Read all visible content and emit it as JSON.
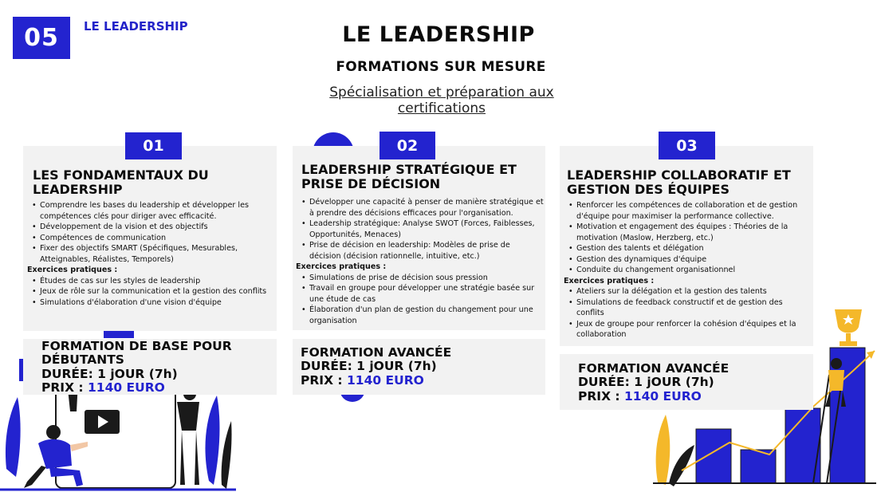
{
  "header": {
    "section_number": "05",
    "section_label": "LE LEADERSHIP",
    "title": "LE LEADERSHIP",
    "subtitle": "FORMATIONS SUR MESURE",
    "specialisation": "Spécialisation et préparation aux certifications"
  },
  "cards": [
    {
      "number": "01",
      "title": "LES FONDAMENTAUX DU LEADERSHIP",
      "bullets": [
        "Comprendre les bases du leadership et développer les compétences clés pour diriger avec efficacité.",
        "Développement de la vision et des objectifs",
        "Compétences de communication",
        "Fixer des objectifs SMART (Spécifiques, Mesurables, Atteignables, Réalistes, Temporels)"
      ],
      "exercises_label": "Exercices pratiques :",
      "exercises": [
        "Études de cas sur les styles de leadership",
        "Jeux de rôle sur la communication et la gestion des conflits",
        "Simulations d'élaboration d'une vision d'équipe"
      ],
      "formation": "FORMATION DE BASE POUR DÉBUTANTS",
      "duration": "DURÉE: 1 jOUR (7h)",
      "price_label": "PRIX :",
      "price_value": "1140 EURO"
    },
    {
      "number": "02",
      "title": "LEADERSHIP STRATÉGIQUE ET PRISE DE DÉCISION",
      "bullets": [
        "Développer une capacité à penser de manière stratégique et à prendre des décisions efficaces pour l'organisation.",
        "Leadership stratégique: Analyse SWOT (Forces, Faiblesses, Opportunités, Menaces)",
        "Prise de décision en leadership: Modèles de prise de décision (décision rationnelle, intuitive, etc.)"
      ],
      "exercises_label": "Exercices pratiques :",
      "exercises": [
        "Simulations de prise de décision sous pression",
        "Travail en groupe pour développer une stratégie basée sur une étude de cas",
        "Élaboration d'un plan de gestion du changement pour une organisation"
      ],
      "formation": "FORMATION AVANCÉE",
      "duration": "DURÉE: 1 jOUR (7h)",
      "price_label": "PRIX :",
      "price_value": "1140 EURO"
    },
    {
      "number": "03",
      "title": "LEADERSHIP COLLABORATIF ET GESTION DES ÉQUIPES",
      "bullets": [
        "Renforcer les compétences de collaboration et de gestion d'équipe pour maximiser la performance collective.",
        "Motivation et engagement des équipes : Théories de la motivation (Maslow, Herzberg, etc.)",
        "Gestion des talents et délégation",
        "Gestion des dynamiques d'équipe",
        "Conduite du changement organisationnel"
      ],
      "exercises_label": "Exercices pratiques :",
      "exercises": [
        "Ateliers sur la délégation et la gestion des talents",
        "Simulations de feedback constructif et de gestion des conflits",
        "Jeux de groupe pour renforcer la cohésion d'équipes et la collaboration"
      ],
      "formation": "FORMATION AVANCÉE",
      "duration": "DURÉE: 1 jOUR (7h)",
      "price_label": "PRIX :",
      "price_value": "1140 EURO"
    }
  ],
  "colors": {
    "accent": "#2323cf",
    "card_bg": "#f2f2f2",
    "trophy": "#f4b82a"
  },
  "illustrations": {
    "left": "video-presenter-illustration",
    "right": "trophy-growth-chart-illustration",
    "play_icon": "play-icon"
  }
}
